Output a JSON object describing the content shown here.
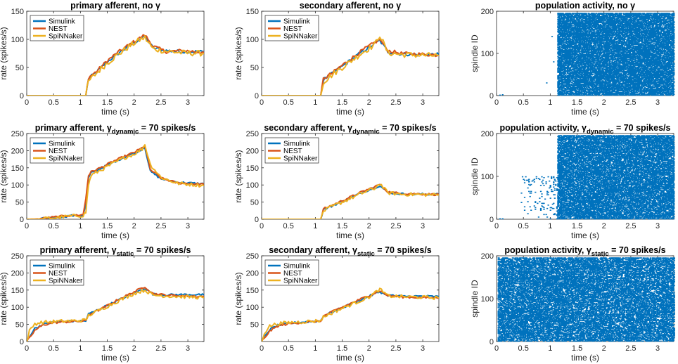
{
  "series_colors": {
    "Simulink": "#0072BD",
    "NEST": "#D95319",
    "SpiNNaker": "#EDB120",
    "raster": "#0072BD"
  },
  "chart_data": [
    {
      "type": "line",
      "title": "primary afferent, no γ",
      "title_parts": {
        "pre": "primary afferent, no γ",
        "sub": "",
        "post": ""
      },
      "xlabel": "time (s)",
      "ylabel": "rate (spikes/s)",
      "xlim": [
        0,
        3.3
      ],
      "ylim": [
        0,
        150
      ],
      "xticks": [
        0,
        0.5,
        1,
        1.5,
        2,
        2.5,
        3
      ],
      "xtick_labels": [
        "0",
        "0.5",
        "1",
        "1.5",
        "2",
        "2.5",
        "3"
      ],
      "yticks": [
        0,
        50,
        100,
        150
      ],
      "ytick_labels": [
        "0",
        "50",
        "100",
        "150"
      ],
      "legend": [
        "Simulink",
        "NEST",
        "SpiNNaker"
      ],
      "series": [
        {
          "name": "Simulink",
          "x": [
            0,
            1.1,
            1.15,
            1.3,
            1.5,
            1.7,
            1.9,
            2.1,
            2.2,
            2.35,
            2.6,
            2.9,
            3.3
          ],
          "y": [
            0,
            0,
            30,
            42,
            60,
            75,
            88,
            100,
            105,
            85,
            80,
            78,
            78
          ]
        },
        {
          "name": "NEST",
          "x": [
            0,
            1.1,
            1.15,
            1.3,
            1.5,
            1.7,
            1.9,
            2.1,
            2.2,
            2.35,
            2.6,
            2.9,
            3.3
          ],
          "y": [
            0,
            0,
            32,
            43,
            62,
            77,
            90,
            102,
            108,
            88,
            78,
            80,
            77
          ]
        },
        {
          "name": "SpiNNaker",
          "x": [
            0,
            1.1,
            1.15,
            1.3,
            1.5,
            1.7,
            1.9,
            2.1,
            2.2,
            2.35,
            2.6,
            2.9,
            3.3
          ],
          "y": [
            0,
            0,
            25,
            40,
            58,
            73,
            87,
            99,
            103,
            83,
            79,
            76,
            75
          ]
        }
      ]
    },
    {
      "type": "line",
      "title": "secondary afferent, no γ",
      "title_parts": {
        "pre": "secondary afferent, no γ",
        "sub": "",
        "post": ""
      },
      "xlabel": "time (s)",
      "ylabel": "rate (spikes/s)",
      "xlim": [
        0,
        3.3
      ],
      "ylim": [
        0,
        150
      ],
      "xticks": [
        0,
        0.5,
        1,
        1.5,
        2,
        2.5,
        3
      ],
      "xtick_labels": [
        "0",
        "0.5",
        "1",
        "1.5",
        "2",
        "2.5",
        "3"
      ],
      "yticks": [
        0,
        50,
        100,
        150
      ],
      "ytick_labels": [
        "0",
        "50",
        "100",
        "150"
      ],
      "legend": [
        "Simulink",
        "NEST",
        "SpiNNaker"
      ],
      "series": [
        {
          "name": "Simulink",
          "x": [
            0,
            1.1,
            1.15,
            1.3,
            1.5,
            1.7,
            1.9,
            2.1,
            2.2,
            2.35,
            2.6,
            2.9,
            3.3
          ],
          "y": [
            0,
            0,
            28,
            38,
            52,
            66,
            80,
            92,
            98,
            78,
            74,
            73,
            73
          ]
        },
        {
          "name": "NEST",
          "x": [
            0,
            1.1,
            1.15,
            1.3,
            1.5,
            1.7,
            1.9,
            2.1,
            2.2,
            2.35,
            2.6,
            2.9,
            3.3
          ],
          "y": [
            0,
            0,
            30,
            39,
            54,
            68,
            82,
            94,
            100,
            80,
            75,
            74,
            72
          ]
        },
        {
          "name": "SpiNNaker",
          "x": [
            0,
            1.1,
            1.15,
            1.3,
            1.5,
            1.7,
            1.9,
            2.1,
            2.2,
            2.35,
            2.6,
            2.9,
            3.3
          ],
          "y": [
            0,
            0,
            24,
            36,
            50,
            64,
            78,
            90,
            108,
            76,
            73,
            72,
            71
          ]
        }
      ]
    },
    {
      "type": "line",
      "title": "primary afferent, γdynamic = 70 spikes/s",
      "title_parts": {
        "pre": "primary afferent, γ",
        "sub": "dynamic",
        "post": " = 70 spikes/s"
      },
      "xlabel": "time (s)",
      "ylabel": "rate (spikes/s)",
      "xlim": [
        0,
        3.3
      ],
      "ylim": [
        0,
        250
      ],
      "xticks": [
        0,
        0.5,
        1,
        1.5,
        2,
        2.5,
        3
      ],
      "xtick_labels": [
        "0",
        "0.5",
        "1",
        "1.5",
        "2",
        "2.5",
        "3"
      ],
      "yticks": [
        0,
        50,
        100,
        150,
        200,
        250
      ],
      "ytick_labels": [
        "0",
        "50",
        "100",
        "150",
        "200",
        "250"
      ],
      "legend": [
        "Simulink",
        "NEST",
        "SpiNNaker"
      ],
      "series": [
        {
          "name": "Simulink",
          "x": [
            0,
            0.2,
            0.5,
            0.8,
            1.05,
            1.1,
            1.15,
            1.2,
            1.4,
            1.6,
            1.8,
            2.0,
            2.15,
            2.2,
            2.3,
            2.5,
            2.8,
            3.3
          ],
          "y": [
            0,
            0,
            5,
            10,
            12,
            40,
            120,
            135,
            150,
            165,
            180,
            192,
            205,
            210,
            140,
            118,
            108,
            103
          ]
        },
        {
          "name": "NEST",
          "x": [
            0,
            0.2,
            0.5,
            0.8,
            1.05,
            1.1,
            1.15,
            1.2,
            1.4,
            1.6,
            1.8,
            2.0,
            2.15,
            2.2,
            2.3,
            2.5,
            2.8,
            3.3
          ],
          "y": [
            0,
            1,
            6,
            11,
            13,
            60,
            128,
            138,
            152,
            168,
            182,
            195,
            208,
            214,
            145,
            120,
            106,
            102
          ]
        },
        {
          "name": "SpiNNaker",
          "x": [
            0,
            0.2,
            0.5,
            0.8,
            1.05,
            1.1,
            1.15,
            1.2,
            1.4,
            1.6,
            1.8,
            2.0,
            2.15,
            2.2,
            2.3,
            2.5,
            2.8,
            3.3
          ],
          "y": [
            0,
            0,
            4,
            9,
            11,
            20,
            100,
            128,
            145,
            162,
            178,
            190,
            205,
            218,
            160,
            122,
            105,
            98
          ]
        }
      ]
    },
    {
      "type": "line",
      "title": "secondary afferent, γdynamic = 70 spikes/s",
      "title_parts": {
        "pre": "secondary afferent, γ",
        "sub": "dynamic",
        "post": " = 70 spikes/s"
      },
      "xlabel": "time (s)",
      "ylabel": "rate (spikes/s)",
      "xlim": [
        0,
        3.3
      ],
      "ylim": [
        0,
        250
      ],
      "xticks": [
        0,
        0.5,
        1,
        1.5,
        2,
        2.5,
        3
      ],
      "xtick_labels": [
        "0",
        "0.5",
        "1",
        "1.5",
        "2",
        "2.5",
        "3"
      ],
      "yticks": [
        0,
        50,
        100,
        150,
        200,
        250
      ],
      "ytick_labels": [
        "0",
        "50",
        "100",
        "150",
        "200",
        "250"
      ],
      "legend": [
        "Simulink",
        "NEST",
        "SpiNNaker"
      ],
      "series": [
        {
          "name": "Simulink",
          "x": [
            0,
            1.1,
            1.15,
            1.3,
            1.5,
            1.7,
            1.9,
            2.1,
            2.2,
            2.35,
            2.6,
            2.9,
            3.3
          ],
          "y": [
            0,
            0,
            28,
            38,
            52,
            66,
            80,
            92,
            98,
            78,
            74,
            73,
            73
          ]
        },
        {
          "name": "NEST",
          "x": [
            0,
            1.1,
            1.15,
            1.3,
            1.5,
            1.7,
            1.9,
            2.1,
            2.2,
            2.35,
            2.6,
            2.9,
            3.3
          ],
          "y": [
            0,
            0,
            30,
            40,
            54,
            68,
            82,
            94,
            102,
            80,
            75,
            74,
            72
          ]
        },
        {
          "name": "SpiNNaker",
          "x": [
            0,
            1.1,
            1.15,
            1.3,
            1.5,
            1.7,
            1.9,
            2.1,
            2.2,
            2.35,
            2.6,
            2.9,
            3.3
          ],
          "y": [
            0,
            0,
            24,
            36,
            50,
            64,
            78,
            90,
            104,
            77,
            73,
            72,
            71
          ]
        }
      ]
    },
    {
      "type": "line",
      "title": "primary afferent, γstatic = 70 spikes/s",
      "title_parts": {
        "pre": "primary afferent, γ",
        "sub": "static",
        "post": " = 70 spikes/s"
      },
      "xlabel": "time (s)",
      "ylabel": "rate (spikes/s)",
      "xlim": [
        0,
        3.3
      ],
      "ylim": [
        0,
        250
      ],
      "xticks": [
        0,
        0.5,
        1,
        1.5,
        2,
        2.5,
        3
      ],
      "xtick_labels": [
        "0",
        "0.5",
        "1",
        "1.5",
        "2",
        "2.5",
        "3"
      ],
      "yticks": [
        0,
        50,
        100,
        150,
        200,
        250
      ],
      "ytick_labels": [
        "0",
        "50",
        "100",
        "150",
        "200",
        "250"
      ],
      "legend": [
        "Simulink",
        "NEST",
        "SpiNNaker"
      ],
      "series": [
        {
          "name": "Simulink",
          "x": [
            0,
            0.05,
            0.15,
            0.3,
            0.5,
            0.8,
            1.1,
            1.15,
            1.4,
            1.7,
            2.0,
            2.2,
            2.35,
            2.6,
            3.0,
            3.3
          ],
          "y": [
            0,
            15,
            38,
            50,
            56,
            59,
            60,
            80,
            98,
            120,
            142,
            155,
            138,
            136,
            137,
            136
          ]
        },
        {
          "name": "NEST",
          "x": [
            0,
            0.05,
            0.15,
            0.3,
            0.5,
            0.8,
            1.1,
            1.15,
            1.4,
            1.7,
            2.0,
            2.2,
            2.35,
            2.6,
            3.0,
            3.3
          ],
          "y": [
            0,
            10,
            32,
            48,
            55,
            58,
            60,
            78,
            96,
            122,
            145,
            160,
            140,
            135,
            133,
            131
          ]
        },
        {
          "name": "SpiNNaker",
          "x": [
            0,
            0.05,
            0.15,
            0.3,
            0.5,
            0.8,
            1.1,
            1.15,
            1.4,
            1.7,
            2.0,
            2.2,
            2.35,
            2.6,
            3.0,
            3.3
          ],
          "y": [
            0,
            30,
            52,
            56,
            58,
            60,
            62,
            76,
            95,
            118,
            140,
            150,
            135,
            133,
            130,
            128
          ]
        }
      ]
    },
    {
      "type": "line",
      "title": "secondary afferent, γstatic = 70 spikes/s",
      "title_parts": {
        "pre": "secondary afferent, γ",
        "sub": "static",
        "post": " = 70 spikes/s"
      },
      "xlabel": "time (s)",
      "ylabel": "rate (spikes/s)",
      "xlim": [
        0,
        3.3
      ],
      "ylim": [
        0,
        250
      ],
      "xticks": [
        0,
        0.5,
        1,
        1.5,
        2,
        2.5,
        3
      ],
      "xtick_labels": [
        "0",
        "0.5",
        "1",
        "1.5",
        "2",
        "2.5",
        "3"
      ],
      "yticks": [
        50,
        100,
        150,
        200,
        250
      ],
      "ytick_labels": [
        "50",
        "100",
        "150",
        "200",
        "250"
      ],
      "legend": [
        "Simulink",
        "NEST",
        "SpiNNaker"
      ],
      "series": [
        {
          "name": "Simulink",
          "x": [
            0,
            0.05,
            0.15,
            0.3,
            0.5,
            0.8,
            1.1,
            1.15,
            1.4,
            1.7,
            2.0,
            2.2,
            2.35,
            2.6,
            3.0,
            3.3
          ],
          "y": [
            0,
            14,
            35,
            47,
            53,
            57,
            60,
            75,
            92,
            112,
            132,
            145,
            135,
            132,
            132,
            131
          ]
        },
        {
          "name": "NEST",
          "x": [
            0,
            0.05,
            0.15,
            0.3,
            0.5,
            0.8,
            1.1,
            1.15,
            1.4,
            1.7,
            2.0,
            2.2,
            2.35,
            2.6,
            3.0,
            3.3
          ],
          "y": [
            0,
            10,
            30,
            45,
            52,
            56,
            59,
            74,
            93,
            114,
            134,
            148,
            134,
            130,
            128,
            127
          ]
        },
        {
          "name": "SpiNNaker",
          "x": [
            0,
            0.05,
            0.15,
            0.3,
            0.5,
            0.8,
            1.1,
            1.15,
            1.4,
            1.7,
            2.0,
            2.2,
            2.35,
            2.6,
            3.0,
            3.3
          ],
          "y": [
            0,
            25,
            45,
            52,
            55,
            58,
            61,
            72,
            90,
            110,
            130,
            152,
            133,
            131,
            129,
            127
          ]
        }
      ]
    },
    {
      "type": "scatter",
      "title": "population activity, no γ",
      "title_parts": {
        "pre": "population activity, no γ",
        "sub": "",
        "post": ""
      },
      "xlabel": "time (s)",
      "ylabel": "spindle ID",
      "xlim": [
        0,
        3.3
      ],
      "ylim": [
        0,
        200
      ],
      "xticks": [
        0,
        0.5,
        1,
        1.5,
        2,
        2.5,
        3
      ],
      "xtick_labels": [
        "0",
        "0.5",
        "1",
        "1.5",
        "2",
        "2.5",
        "3"
      ],
      "yticks": [
        0,
        100,
        200
      ],
      "ytick_labels": [
        "0",
        "100",
        "200"
      ],
      "raster": {
        "n_neurons": 195,
        "dense_start": 1.13,
        "dense_density": 0.65,
        "early_points": [
          [
            0.05,
            1
          ],
          [
            0.1,
            2
          ],
          [
            0.92,
            30
          ],
          [
            1.02,
            140
          ],
          [
            1.05,
            80
          ]
        ],
        "early_region": null,
        "early_density": 0
      }
    },
    {
      "type": "scatter",
      "title": "population activity, γdynamic = 70 spikes/s",
      "title_parts": {
        "pre": "population activity, γ",
        "sub": "dynamic",
        "post": " = 70 spikes/s"
      },
      "xlabel": "time (s)",
      "ylabel": "spindle ID",
      "xlim": [
        0,
        3.3
      ],
      "ylim": [
        0,
        200
      ],
      "xticks": [
        0,
        0.5,
        1,
        1.5,
        2,
        2.5,
        3
      ],
      "xtick_labels": [
        "0",
        "0.5",
        "1",
        "1.5",
        "2",
        "2.5",
        "3"
      ],
      "yticks": [
        0,
        100,
        200
      ],
      "ytick_labels": [
        "0",
        "100",
        "200"
      ],
      "raster": {
        "n_neurons": 195,
        "dense_start": 1.13,
        "dense_density": 0.6,
        "early_points": [
          [
            0.05,
            1
          ],
          [
            0.1,
            1
          ]
        ],
        "early_region": {
          "x0": 0.45,
          "x1": 1.12,
          "ymax": 100
        },
        "early_density": 0.04
      }
    },
    {
      "type": "scatter",
      "title": "population activity, γstatic = 70 spikes/s",
      "title_parts": {
        "pre": "population activity, γ",
        "sub": "static",
        "post": " = 70 spikes/s"
      },
      "xlabel": "time (s)",
      "ylabel": "spindle ID",
      "xlim": [
        0,
        3.3
      ],
      "ylim": [
        0,
        200
      ],
      "xticks": [
        0,
        0.5,
        1,
        1.5,
        2,
        2.5,
        3
      ],
      "xtick_labels": [
        "0",
        "0.5",
        "1",
        "1.5",
        "2",
        "2.5",
        "3"
      ],
      "yticks": [
        0,
        100,
        200
      ],
      "ytick_labels": [
        "0",
        "100",
        "200"
      ],
      "raster": {
        "n_neurons": 195,
        "dense_start": 0.02,
        "dense_density": 0.55,
        "early_points": [],
        "early_region": null,
        "early_density": 0
      }
    }
  ]
}
